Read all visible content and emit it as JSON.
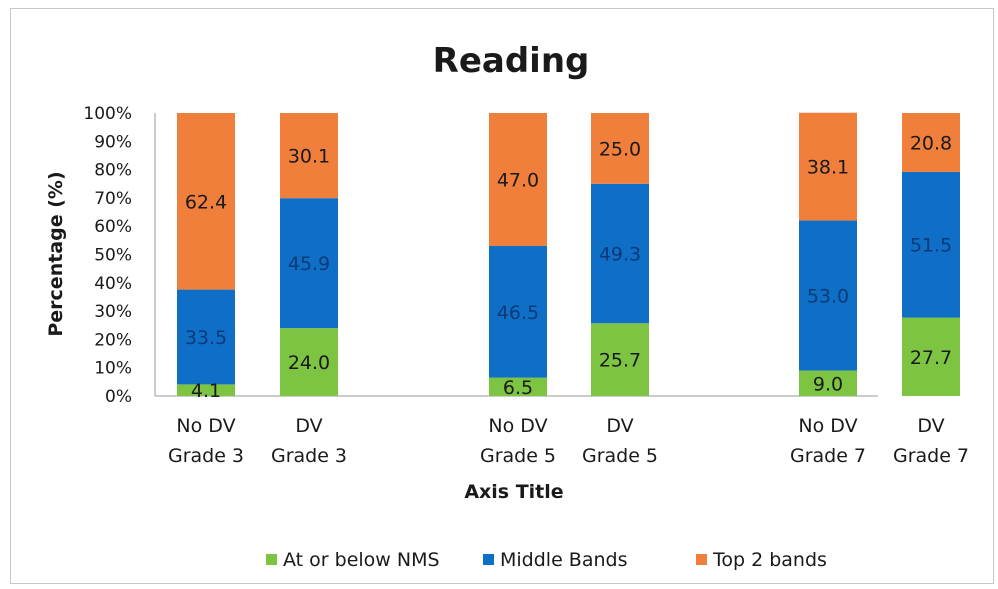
{
  "chart_data": {
    "type": "bar",
    "stacked": true,
    "title": "Reading",
    "xlabel": "Axis Title",
    "ylabel": "Percentage (%)",
    "ylim": [
      0,
      100
    ],
    "yticks": [
      "0%",
      "10%",
      "20%",
      "30%",
      "40%",
      "50%",
      "60%",
      "70%",
      "80%",
      "90%",
      "100%"
    ],
    "categories": [
      [
        "No DV",
        "Grade 3"
      ],
      [
        "DV",
        "Grade 3"
      ],
      [
        "No DV",
        "Grade 5"
      ],
      [
        "DV",
        "Grade 5"
      ],
      [
        "No DV",
        "Grade 7"
      ],
      [
        "DV",
        "Grade 7"
      ]
    ],
    "series": [
      {
        "name": "At or below NMS",
        "color": "#7dc442",
        "labels": [
          "4.1",
          "24.0",
          "6.5",
          "25.7",
          "9.0",
          "27.7"
        ],
        "values": [
          4.1,
          24.0,
          6.5,
          25.7,
          9.0,
          27.7
        ]
      },
      {
        "name": "Middle Bands",
        "color": "#0f6fc6",
        "labels": [
          "33.5",
          "45.9",
          "46.5",
          "49.3",
          "53.0",
          "51.5"
        ],
        "values": [
          33.5,
          45.9,
          46.5,
          49.3,
          53.0,
          51.5
        ]
      },
      {
        "name": "Top 2 bands",
        "color": "#f07f3c",
        "labels": [
          "62.4",
          "30.1",
          "47.0",
          "25.0",
          "38.1",
          "20.8"
        ],
        "values": [
          62.4,
          30.1,
          47.0,
          25.0,
          38.1,
          20.8
        ]
      }
    ],
    "grid": false,
    "legend": "bottom"
  }
}
